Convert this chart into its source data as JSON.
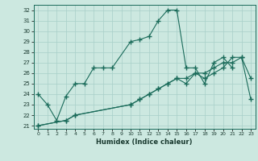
{
  "xlabel": "Humidex (Indice chaleur)",
  "background_color": "#cce8e0",
  "grid_color": "#a8cfc8",
  "line_color": "#1a6b5a",
  "xlim": [
    -0.5,
    23.5
  ],
  "ylim": [
    20.7,
    32.5
  ],
  "xticks": [
    0,
    1,
    2,
    3,
    4,
    5,
    6,
    7,
    8,
    9,
    10,
    11,
    12,
    13,
    14,
    15,
    16,
    17,
    18,
    19,
    20,
    21,
    22,
    23
  ],
  "yticks": [
    21,
    22,
    23,
    24,
    25,
    26,
    27,
    28,
    29,
    30,
    31,
    32
  ],
  "series1_x": [
    0,
    1,
    2,
    3,
    4,
    5,
    6,
    7,
    8,
    10,
    11,
    12,
    13,
    14,
    15,
    16,
    17,
    18,
    19,
    20,
    21
  ],
  "series1_y": [
    24.0,
    23.0,
    21.5,
    23.8,
    25.0,
    25.0,
    26.5,
    26.5,
    26.5,
    29.0,
    29.2,
    29.5,
    31.0,
    32.0,
    32.0,
    26.5,
    26.5,
    25.0,
    27.0,
    27.5,
    26.5
  ],
  "series2_x": [
    0,
    3,
    4,
    10,
    11,
    12,
    13,
    14,
    15,
    16,
    17,
    18,
    19,
    20,
    21,
    22,
    23
  ],
  "series2_y": [
    21.0,
    21.5,
    22.0,
    23.0,
    23.5,
    24.0,
    24.5,
    25.0,
    25.5,
    25.5,
    26.0,
    26.0,
    26.5,
    27.0,
    27.0,
    27.5,
    23.5
  ],
  "series3_x": [
    0,
    3,
    4,
    10,
    11,
    12,
    13,
    14,
    15,
    16,
    17,
    18,
    19,
    20,
    21,
    22,
    23
  ],
  "series3_y": [
    21.0,
    21.5,
    22.0,
    23.0,
    23.5,
    24.0,
    24.5,
    25.0,
    25.5,
    25.0,
    26.0,
    25.5,
    26.0,
    26.5,
    27.5,
    27.5,
    25.5
  ]
}
